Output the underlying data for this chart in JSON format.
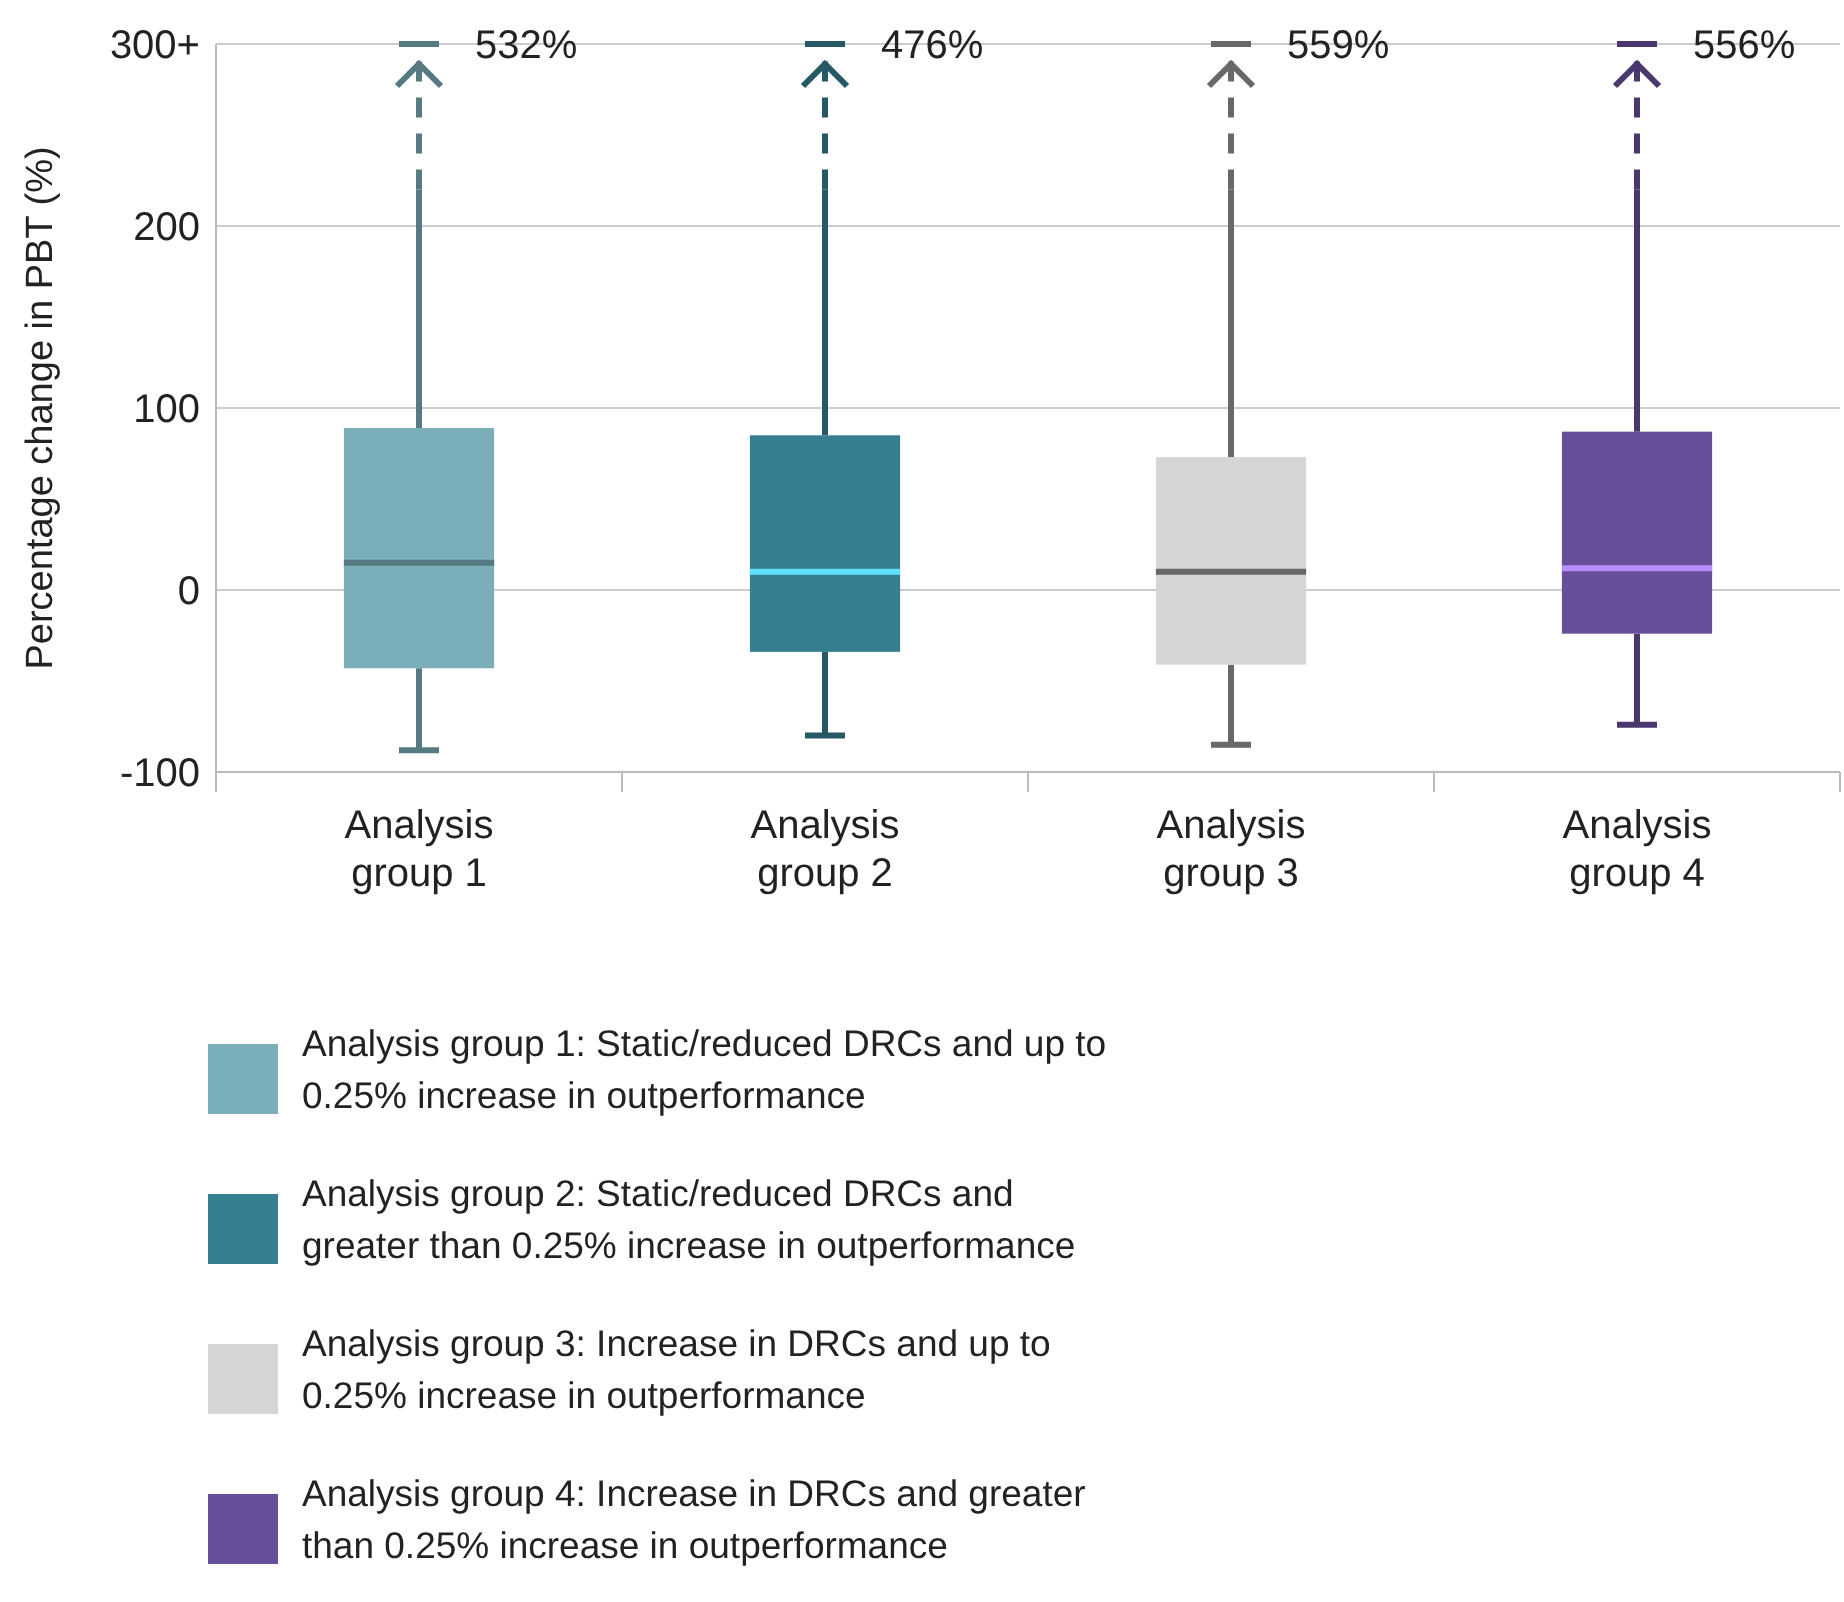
{
  "chart_data": {
    "type": "box",
    "ylabel": "Percentage change in PBT (%)",
    "categories": [
      "Analysis group 1",
      "Analysis group 2",
      "Analysis group 3",
      "Analysis group 4"
    ],
    "series": [
      {
        "name": "Analysis group 1: Static/reduced DRCs and up to 0.25% increase in outperformance",
        "color": "#7aafba",
        "boxes": [
          {
            "low": -88,
            "q1": -43,
            "median": 15,
            "q3": 89,
            "high": 300
          },
          null,
          null,
          null
        ]
      },
      {
        "name": "Analysis group 2: Static/reduced DRCs and greater than 0.25% increase in outperformance",
        "color": "#367f91",
        "boxes": [
          null,
          {
            "low": -80,
            "q1": -34,
            "median": 10,
            "q3": 85,
            "high": 300
          },
          null,
          null
        ]
      },
      {
        "name": "Analysis group 3: Increase in DRCs and up to 0.25% increase in outperformance",
        "color": "#d4d5d7",
        "boxes": [
          null,
          null,
          {
            "low": -85,
            "q1": -41,
            "median": 10,
            "q3": 73,
            "high": 300
          },
          null
        ]
      },
      {
        "name": "Analysis group 4: Increase in DRCs and greater than 0.25% increase in outperformance",
        "color": "#684f9c",
        "boxes": [
          null,
          null,
          null,
          {
            "low": -74,
            "q1": -24,
            "median": 12,
            "q3": 87,
            "high": 300
          }
        ]
      }
    ],
    "ylim": [
      -100,
      300
    ],
    "yticks": [
      -100,
      0,
      100,
      200,
      {
        "value": 300,
        "label": "300+"
      }
    ],
    "grid": "y",
    "legend": "bottom",
    "annotations": [
      {
        "text": "532%",
        "x": "Analysis group 1",
        "y": 300
      },
      {
        "text": "476%",
        "x": "Analysis group 2",
        "y": 300
      },
      {
        "text": "559%",
        "x": "Analysis group 3",
        "y": 300
      },
      {
        "text": "556%",
        "x": "Analysis group 4",
        "y": 300
      }
    ]
  }
}
